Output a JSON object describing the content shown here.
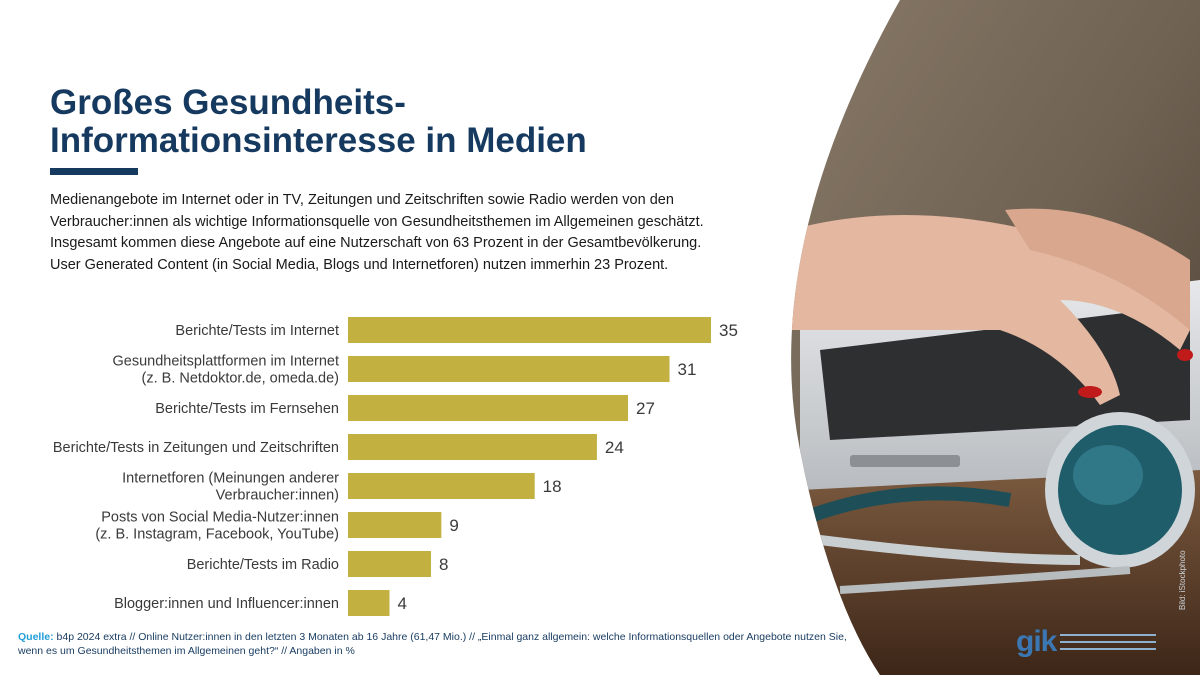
{
  "page": {
    "title_line1": "Großes Gesundheits-",
    "title_line2": "Informationsinteresse in Medien",
    "intro_lines": [
      "Medienangebote im Internet oder in TV, Zeitungen und Zeitschriften sowie Radio werden von den",
      "Verbraucher:innen als wichtige Informationsquelle von Gesundheitsthemen im Allgemeinen geschätzt.",
      "Insgesamt kommen diese Angebote auf eine Nutzerschaft von 63 Prozent in der Gesamtbevölkerung.",
      "User Generated Content (in Social Media, Blogs und Internetforen) nutzen immerhin 23 Prozent."
    ],
    "footnote_label": "Quelle:",
    "footnote_text": " b4p 2024 extra // Online Nutzer:innen in den letzten 3 Monaten ab 16 Jahre (61,47 Mio.) // „Einmal ganz allgemein: welche Informationsquellen oder Angebote nutzen Sie, wenn es um Gesundheitsthemen im Allgemeinen geht?“ // Angaben in %",
    "logo": "gik",
    "photo_credit": "Bild: iStockphoto"
  },
  "colors": {
    "title": "#163a5f",
    "bar": "#c2b040",
    "label": "#3a3a3a",
    "source_label": "#1f9ed8"
  },
  "chart_data": {
    "type": "bar",
    "orientation": "horizontal",
    "categories": [
      [
        "Berichte/Tests im Internet"
      ],
      [
        "Gesundheitsplattformen im Internet",
        "(z. B. Netdoktor.de, omeda.de)"
      ],
      [
        "Berichte/Tests im Fernsehen"
      ],
      [
        "Berichte/Tests in Zeitungen und Zeitschriften"
      ],
      [
        "Internetforen (Meinungen anderer",
        "Verbraucher:innen)"
      ],
      [
        "Posts von Social Media-Nutzer:innen",
        "(z. B. Instagram, Facebook, YouTube)"
      ],
      [
        "Berichte/Tests im Radio"
      ],
      [
        "Blogger:innen und Influencer:innen"
      ]
    ],
    "values": [
      35,
      31,
      27,
      24,
      18,
      9,
      8,
      4
    ],
    "xlim": [
      0,
      35
    ],
    "grid": false,
    "legend": "none"
  }
}
